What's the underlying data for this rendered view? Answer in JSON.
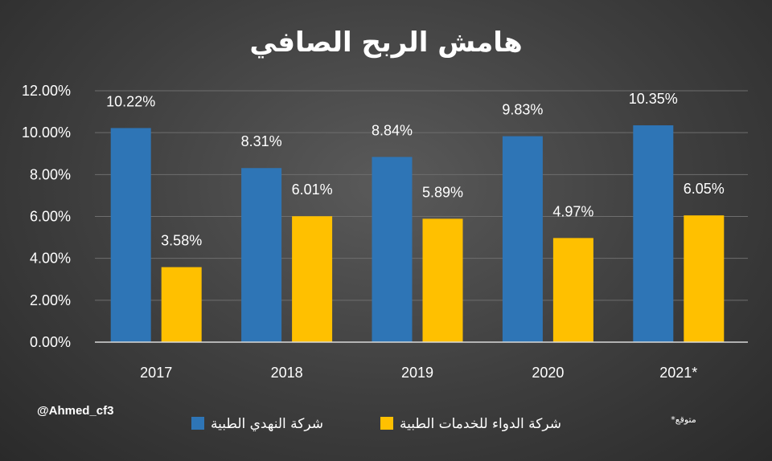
{
  "chart_data": {
    "type": "bar",
    "title": "هامش الربح الصافي",
    "categories": [
      "2017",
      "2018",
      "2019",
      "2020",
      "2021*"
    ],
    "series": [
      {
        "name": "شركة النهدي الطبية",
        "color": "#2e75b6",
        "values": [
          10.22,
          8.31,
          8.84,
          9.83,
          10.35
        ],
        "labels": [
          "10.22%",
          "8.31%",
          "8.84%",
          "9.83%",
          "10.35%"
        ]
      },
      {
        "name": "شركة الدواء للخدمات الطبية",
        "color": "#ffc000",
        "values": [
          3.58,
          6.01,
          5.89,
          4.97,
          6.05
        ],
        "labels": [
          "3.58%",
          "6.01%",
          "5.89%",
          "4.97%",
          "6.05%"
        ]
      }
    ],
    "ylim": [
      0,
      12
    ],
    "yticks": [
      "0.00%",
      "2.00%",
      "4.00%",
      "6.00%",
      "8.00%",
      "10.00%",
      "12.00%"
    ],
    "grid": true,
    "legend_position": "bottom"
  },
  "watermark": "@Ahmed_cf3",
  "footnote": "*متوقع"
}
